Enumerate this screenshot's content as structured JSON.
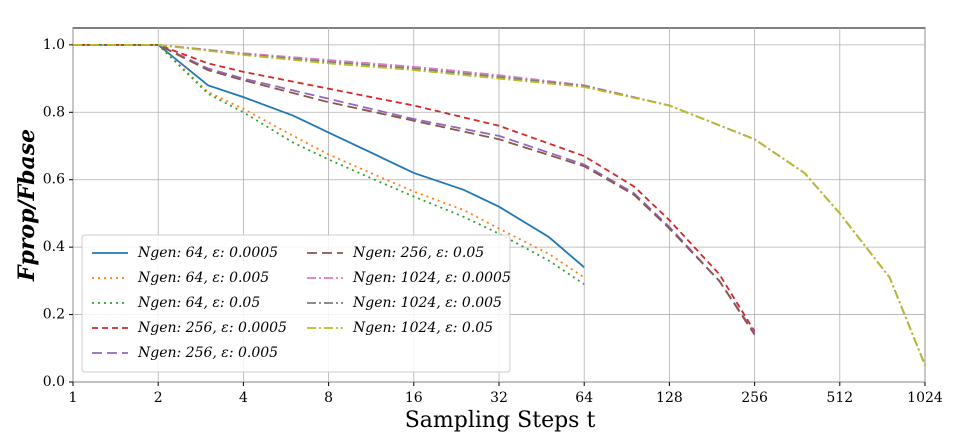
{
  "chart_data": {
    "type": "line",
    "xlabel": "Sampling Steps t",
    "ylabel": "Fprop/Fbase",
    "xscale": "log",
    "xlim": [
      1,
      1024
    ],
    "ylim": [
      0,
      1.05
    ],
    "xticks": [
      1,
      2,
      4,
      8,
      16,
      32,
      64,
      128,
      256,
      512,
      1024
    ],
    "yticks": [
      {
        "value": 0,
        "label": "0.0"
      },
      {
        "value": 0.2,
        "label": "0.2"
      },
      {
        "value": 0.4,
        "label": "0.4"
      },
      {
        "value": 0.6,
        "label": "0.6"
      },
      {
        "value": 0.8,
        "label": "0.8"
      },
      {
        "value": 1,
        "label": "1.0"
      }
    ],
    "grid": true,
    "legend": "lower left",
    "series": [
      {
        "name": "Ngen: 64, ε: 0.0005",
        "color": "#1f77b4",
        "dash": "solid",
        "x": [
          1,
          2,
          3,
          4,
          6,
          8,
          12,
          16,
          24,
          32,
          48,
          64
        ],
        "values": [
          1,
          1,
          0.88,
          0.845,
          0.79,
          0.74,
          0.67,
          0.62,
          0.57,
          0.52,
          0.43,
          0.34
        ]
      },
      {
        "name": "Ngen: 64, ε: 0.005",
        "color": "#ff7f0e",
        "dash": "dotted",
        "x": [
          1,
          2,
          3,
          4,
          6,
          8,
          12,
          16,
          24,
          32,
          48,
          64
        ],
        "values": [
          1,
          1,
          0.86,
          0.81,
          0.73,
          0.675,
          0.61,
          0.565,
          0.51,
          0.455,
          0.38,
          0.31
        ]
      },
      {
        "name": "Ngen: 64, ε: 0.05",
        "color": "#2ca02c",
        "dash": "dotted",
        "x": [
          1,
          2,
          3,
          4,
          6,
          8,
          12,
          16,
          24,
          32,
          48,
          64
        ],
        "values": [
          1,
          1,
          0.855,
          0.8,
          0.71,
          0.66,
          0.595,
          0.55,
          0.49,
          0.44,
          0.36,
          0.29
        ]
      },
      {
        "name": "Ngen: 256, ε: 0.0005",
        "color": "#d62728",
        "dash": "dashed",
        "x": [
          1,
          2,
          3,
          4,
          8,
          16,
          32,
          64,
          96,
          128,
          192,
          256
        ],
        "values": [
          1,
          1,
          0.945,
          0.92,
          0.87,
          0.82,
          0.76,
          0.67,
          0.58,
          0.48,
          0.32,
          0.15
        ]
      },
      {
        "name": "Ngen: 256, ε: 0.005",
        "color": "#9467bd",
        "dash": "longdash",
        "x": [
          1,
          2,
          3,
          4,
          8,
          16,
          32,
          64,
          96,
          128,
          192,
          256
        ],
        "values": [
          1,
          1,
          0.93,
          0.9,
          0.84,
          0.78,
          0.73,
          0.645,
          0.56,
          0.46,
          0.3,
          0.145
        ]
      },
      {
        "name": "Ngen: 256, ε: 0.05",
        "color": "#8c564b",
        "dash": "longdash",
        "x": [
          1,
          2,
          3,
          4,
          8,
          16,
          32,
          64,
          96,
          128,
          192,
          256
        ],
        "values": [
          1,
          1,
          0.925,
          0.895,
          0.83,
          0.775,
          0.72,
          0.64,
          0.555,
          0.455,
          0.3,
          0.14
        ]
      },
      {
        "name": "Ngen: 1024, ε: 0.0005",
        "color": "#e377c2",
        "dash": "dashdot",
        "x": [
          1,
          2,
          4,
          8,
          16,
          32,
          64,
          128,
          256,
          384,
          512,
          768,
          1024
        ],
        "values": [
          1,
          1,
          0.975,
          0.955,
          0.935,
          0.91,
          0.88,
          0.82,
          0.72,
          0.62,
          0.5,
          0.31,
          0.05
        ]
      },
      {
        "name": "Ngen: 1024, ε: 0.005",
        "color": "#7f7f7f",
        "dash": "dashdot",
        "x": [
          1,
          2,
          4,
          8,
          16,
          32,
          64,
          128,
          256,
          384,
          512,
          768,
          1024
        ],
        "values": [
          1,
          1,
          0.972,
          0.95,
          0.93,
          0.905,
          0.878,
          0.82,
          0.72,
          0.62,
          0.5,
          0.31,
          0.05
        ]
      },
      {
        "name": "Ngen: 1024, ε: 0.05",
        "color": "#bcbd22",
        "dash": "dashdot",
        "x": [
          1,
          2,
          4,
          8,
          16,
          32,
          64,
          128,
          256,
          384,
          512,
          768,
          1024
        ],
        "values": [
          1,
          1,
          0.97,
          0.945,
          0.925,
          0.9,
          0.875,
          0.82,
          0.72,
          0.62,
          0.5,
          0.31,
          0.05
        ]
      }
    ]
  }
}
